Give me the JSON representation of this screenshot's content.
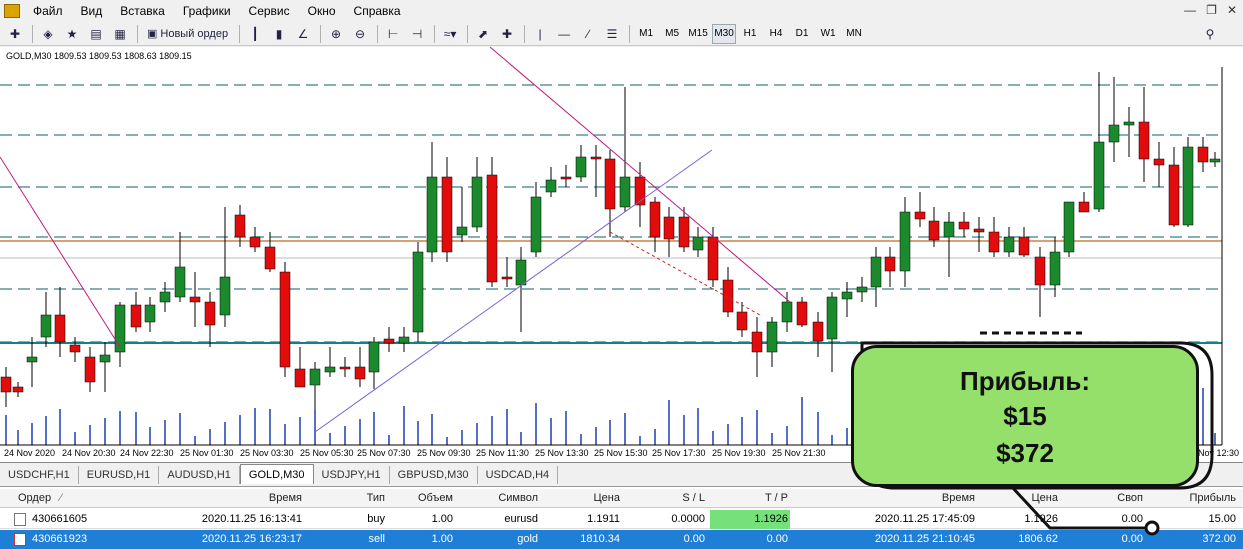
{
  "menu": {
    "items": [
      "Файл",
      "Вид",
      "Вставка",
      "Графики",
      "Сервис",
      "Окно",
      "Справка"
    ]
  },
  "toolbar": {
    "new_order_label": "Новый ордер",
    "timeframes": [
      "M1",
      "M5",
      "M15",
      "M30",
      "H1",
      "H4",
      "D1",
      "W1",
      "MN"
    ],
    "active_timeframe": "M30"
  },
  "chart": {
    "info": "GOLD,M30  1809.53 1809.53 1808.63 1809.15",
    "time_labels": [
      "24 Nov 2020",
      "24 Nov 20:30",
      "24 Nov 22:30",
      "25 Nov 01:30",
      "25 Nov 03:30",
      "25 Nov 05:30",
      "25 Nov 07:30",
      "25 Nov 09:30",
      "25 Nov 11:30",
      "25 Nov 13:30",
      "25 Nov 15:30",
      "25 Nov 17:30",
      "25 Nov 19:30",
      "25 Nov 21:30",
      "Nov 12:30"
    ]
  },
  "tabs": [
    "USDCHF,H1",
    "EURUSD,H1",
    "AUDUSD,H1",
    "GOLD,M30",
    "USDJPY,H1",
    "GBPUSD,M30",
    "USDCAD,H4"
  ],
  "active_tab": "GOLD,M30",
  "terminal": {
    "headers": {
      "order": "Ордер",
      "time": "Время",
      "type": "Тип",
      "volume": "Объем",
      "symbol": "Символ",
      "price": "Цена",
      "sl": "S / L",
      "tp": "T / P",
      "time2": "Время",
      "price2": "Цена",
      "swap": "Своп",
      "profit": "Прибыль"
    },
    "rows": [
      {
        "order": "430661605",
        "time": "2020.11.25 16:13:41",
        "type": "buy",
        "volume": "1.00",
        "symbol": "eurusd",
        "price": "1.1911",
        "sl": "0.0000",
        "tp": "1.1926",
        "time2": "2020.11.25 17:45:09",
        "price2": "1.1926",
        "swap": "0.00",
        "profit": "15.00"
      },
      {
        "order": "430661923",
        "time": "2020.11.25 16:23:17",
        "type": "sell",
        "volume": "1.00",
        "symbol": "gold",
        "price": "1810.34",
        "sl": "0.00",
        "tp": "0.00",
        "time2": "2020.11.25 21:10:45",
        "price2": "1806.62",
        "swap": "0.00",
        "profit": "372.00"
      }
    ]
  },
  "callout": {
    "title": "Прибыль:",
    "line1": "$15",
    "line2": "$372",
    "fill_color": "#95e06a"
  }
}
